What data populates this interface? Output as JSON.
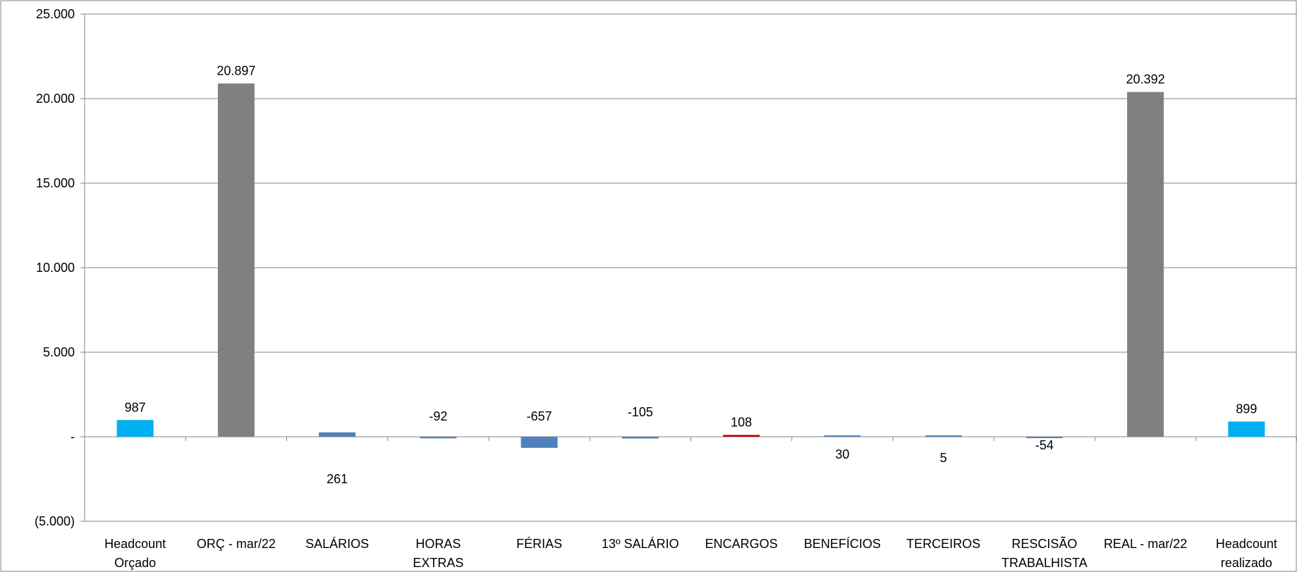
{
  "chart_data": {
    "type": "bar",
    "title": "",
    "xlabel": "",
    "ylabel": "",
    "ylim": [
      -5000,
      25000
    ],
    "yticks": [
      {
        "value": 25000,
        "label": "25.000"
      },
      {
        "value": 20000,
        "label": "20.000"
      },
      {
        "value": 15000,
        "label": "15.000"
      },
      {
        "value": 10000,
        "label": "10.000"
      },
      {
        "value": 5000,
        "label": "5.000"
      },
      {
        "value": 0,
        "label": "-"
      },
      {
        "value": -5000,
        "label": "(5.000)"
      }
    ],
    "grid": true,
    "legend": "none",
    "categories": [
      [
        "Headcount",
        "Orçado"
      ],
      [
        "ORÇ - mar/22"
      ],
      [
        "SALÁRIOS"
      ],
      [
        "HORAS",
        "EXTRAS"
      ],
      [
        "FÉRIAS"
      ],
      [
        "13º SALÁRIO"
      ],
      [
        "ENCARGOS"
      ],
      [
        "BENEFÍCIOS"
      ],
      [
        "TERCEIROS"
      ],
      [
        "RESCISÃO",
        "TRABALHISTA"
      ],
      [
        "REAL - mar/22"
      ],
      [
        "Headcount",
        "realizado"
      ]
    ],
    "values": [
      987,
      20897,
      261,
      -92,
      -657,
      -105,
      108,
      30,
      5,
      -54,
      20392,
      899
    ],
    "data_labels": [
      "987",
      "20.897",
      "261",
      "-92",
      "-657",
      "-105",
      "108",
      "30",
      "5",
      "-54",
      "20.392",
      "899"
    ],
    "label_offsets_data_units": [
      0,
      0,
      -2500,
      1200,
      1200,
      1450,
      0,
      -1050,
      -1250,
      -500,
      0,
      0
    ],
    "colors": [
      "#00b0f0",
      "#808080",
      "#4f81bd",
      "#4f81bd",
      "#4f81bd",
      "#4f81bd",
      "#c00000",
      "#4f81bd",
      "#4f81bd",
      "#4f81bd",
      "#808080",
      "#00b0f0"
    ]
  }
}
